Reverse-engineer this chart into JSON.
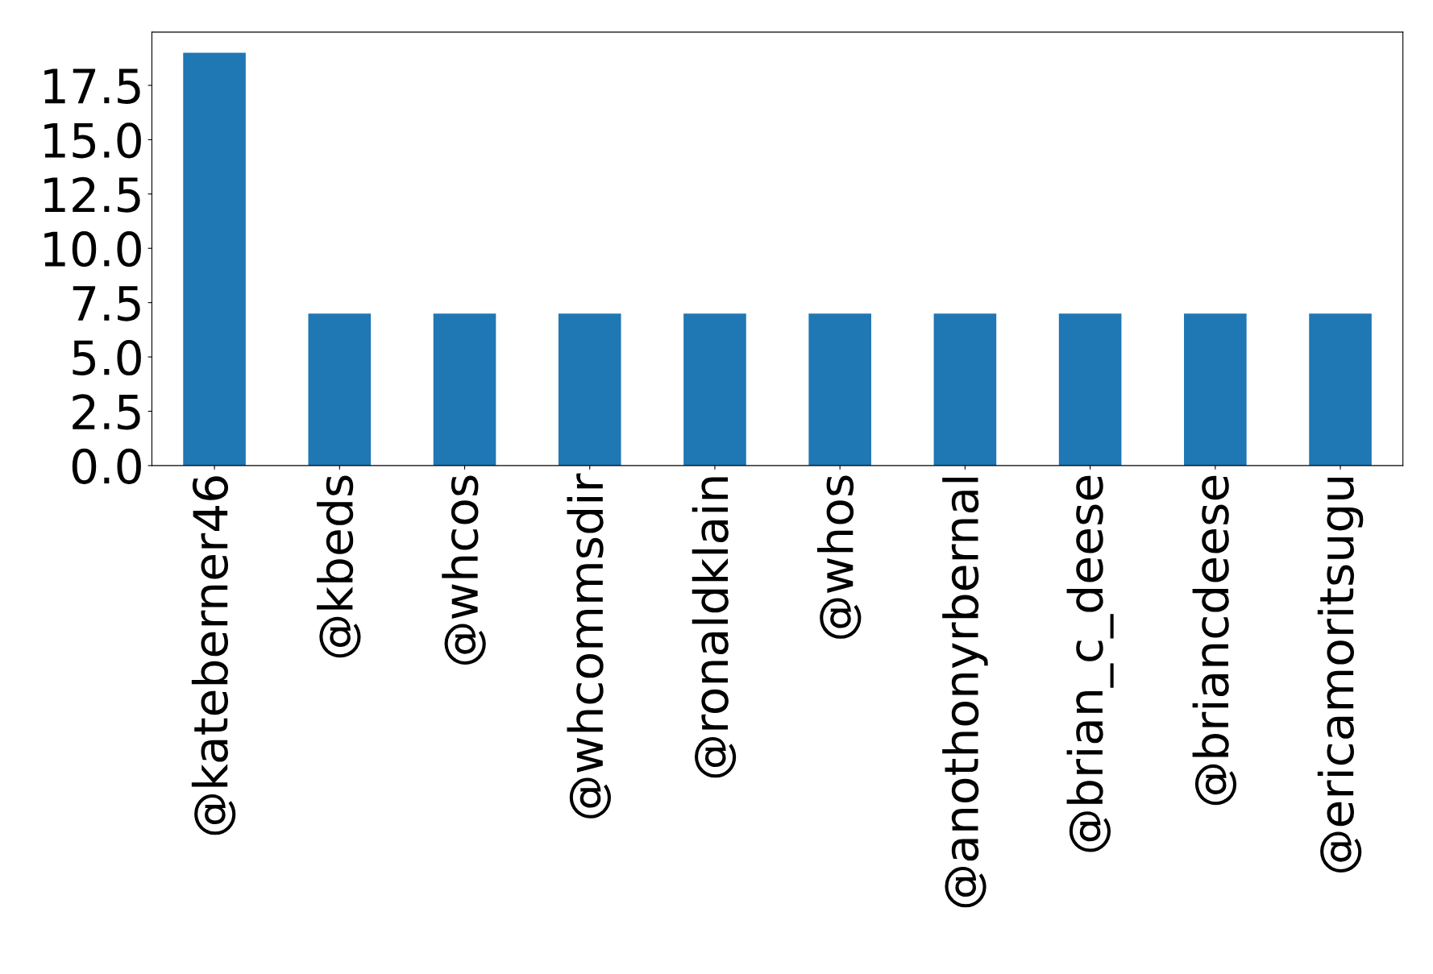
{
  "chart_data": {
    "type": "bar",
    "categories": [
      "@kateberner46",
      "@kbeds",
      "@whcos",
      "@whcommsdir",
      "@ronaldklain",
      "@whos",
      "@anothonyrbernal",
      "@brian_c_deese",
      "@briancdeese",
      "@ericamoritsugu"
    ],
    "values": [
      19,
      7,
      7,
      7,
      7,
      7,
      7,
      7,
      7,
      7
    ],
    "color": "#1f77b4",
    "ylim": [
      0,
      19.95
    ],
    "yticks": [
      {
        "value": 0,
        "label": "0.0"
      },
      2.5,
      {
        "value": 5,
        "label": "5.0"
      },
      7.5,
      {
        "value": 10,
        "label": "10.0"
      },
      12.5,
      {
        "value": 15,
        "label": "15.0"
      },
      17.5
    ],
    "grid": false,
    "legend": false
  }
}
